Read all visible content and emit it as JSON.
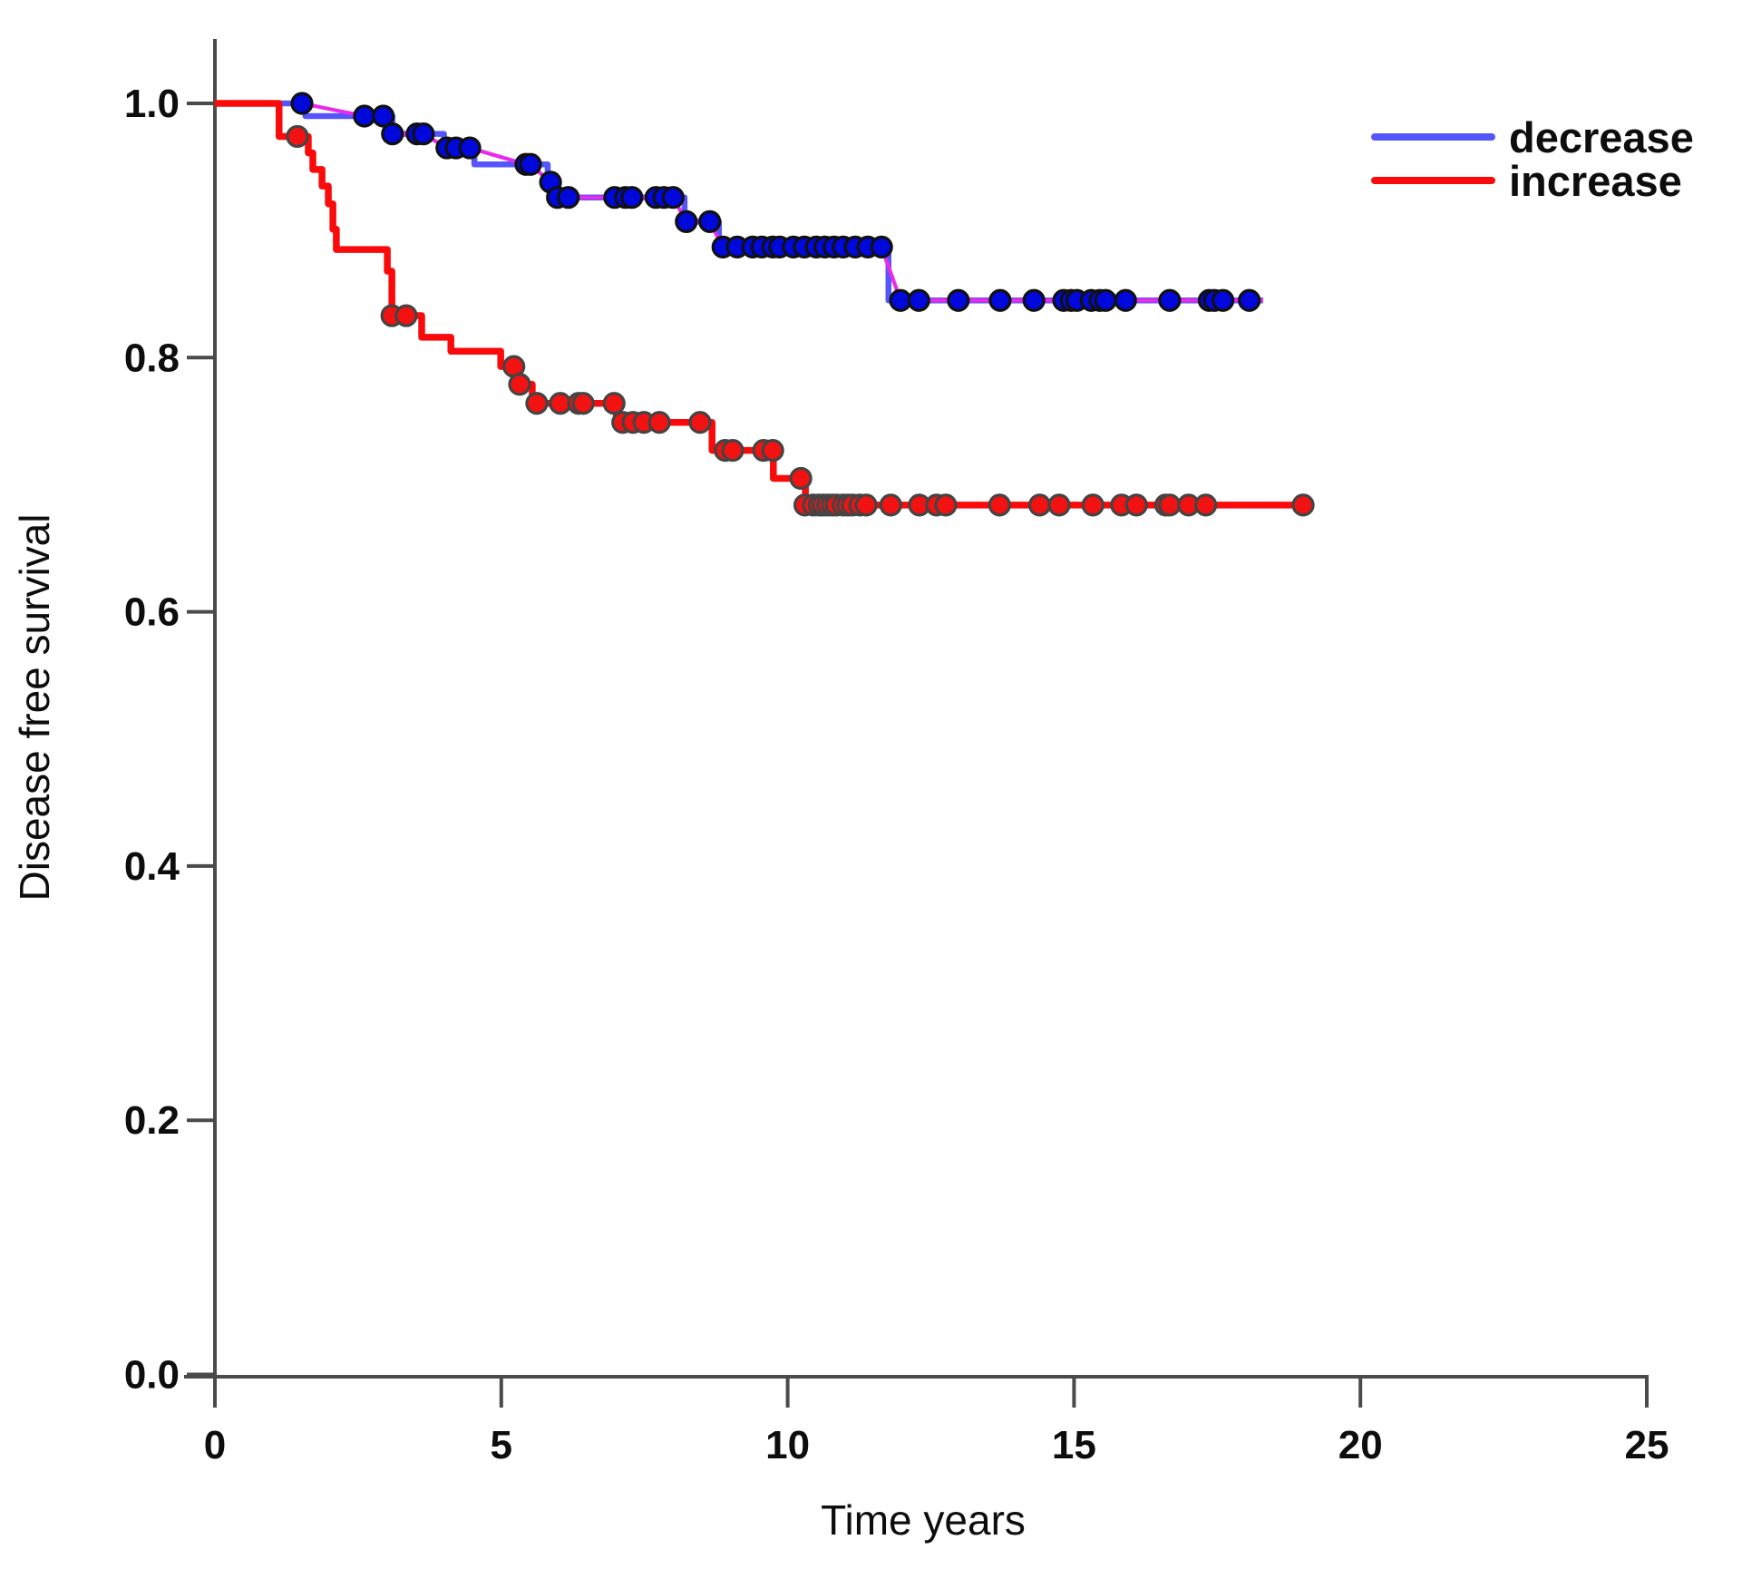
{
  "figure": {
    "background": "#ffffff",
    "axis_color": "#4a4a4a",
    "text_color": "#0d0d0d"
  },
  "axes": {
    "x": {
      "title": "Time years",
      "tick_labels": [
        "0",
        "5",
        "10",
        "15",
        "20",
        "25"
      ],
      "range": [
        0,
        25
      ]
    },
    "y": {
      "title": "Disease free survival",
      "tick_labels": [
        "0.0",
        "0.2",
        "0.4",
        "0.6",
        "0.8",
        "1.0"
      ],
      "range": [
        0,
        1
      ]
    }
  },
  "legend": [
    {
      "label": "decrease",
      "color": "#5456fb"
    },
    {
      "label": "increase",
      "color": "#fa0a0a"
    }
  ],
  "chart_data": {
    "type": "line",
    "subtype": "kaplan-meier-step",
    "title": "",
    "xlabel": "Time years",
    "ylabel": "Disease free survival",
    "xlim": [
      0,
      25
    ],
    "ylim": [
      0,
      1
    ],
    "grid": false,
    "legend_position": "top-right",
    "series": [
      {
        "name": "decrease",
        "color": "#5456fb",
        "connector_color": "#e92be9",
        "dot_fill": "#0008dc",
        "dot_stroke": "#101010",
        "steps": [
          [
            0,
            1.0
          ],
          [
            1.58,
            0.99
          ],
          [
            3.1,
            0.976
          ],
          [
            4.0,
            0.965
          ],
          [
            4.53,
            0.952
          ],
          [
            5.81,
            0.938
          ],
          [
            5.94,
            0.926
          ],
          [
            8.2,
            0.907
          ],
          [
            8.8,
            0.887
          ],
          [
            11.76,
            0.845
          ]
        ],
        "end_time": 18.3,
        "censored": [
          [
            1.52,
            1.0
          ],
          [
            2.61,
            0.99
          ],
          [
            2.94,
            0.99
          ],
          [
            3.1,
            0.976
          ],
          [
            3.53,
            0.976
          ],
          [
            3.64,
            0.976
          ],
          [
            4.05,
            0.965
          ],
          [
            4.21,
            0.965
          ],
          [
            4.45,
            0.965
          ],
          [
            5.43,
            0.952
          ],
          [
            5.51,
            0.952
          ],
          [
            5.86,
            0.938
          ],
          [
            5.98,
            0.926
          ],
          [
            6.17,
            0.926
          ],
          [
            6.98,
            0.926
          ],
          [
            7.17,
            0.926
          ],
          [
            7.28,
            0.926
          ],
          [
            7.7,
            0.926
          ],
          [
            7.84,
            0.926
          ],
          [
            8.0,
            0.926
          ],
          [
            8.23,
            0.907
          ],
          [
            8.64,
            0.907
          ],
          [
            8.87,
            0.887
          ],
          [
            9.12,
            0.887
          ],
          [
            9.39,
            0.887
          ],
          [
            9.55,
            0.887
          ],
          [
            9.74,
            0.887
          ],
          [
            9.86,
            0.887
          ],
          [
            10.1,
            0.887
          ],
          [
            10.29,
            0.887
          ],
          [
            10.5,
            0.887
          ],
          [
            10.65,
            0.887
          ],
          [
            10.81,
            0.887
          ],
          [
            10.97,
            0.887
          ],
          [
            11.18,
            0.887
          ],
          [
            11.4,
            0.887
          ],
          [
            11.64,
            0.887
          ],
          [
            11.97,
            0.845
          ],
          [
            12.29,
            0.845
          ],
          [
            12.98,
            0.845
          ],
          [
            13.71,
            0.845
          ],
          [
            14.3,
            0.845
          ],
          [
            14.82,
            0.845
          ],
          [
            14.95,
            0.845
          ],
          [
            15.05,
            0.845
          ],
          [
            15.3,
            0.845
          ],
          [
            15.45,
            0.845
          ],
          [
            15.55,
            0.845
          ],
          [
            15.9,
            0.845
          ],
          [
            16.67,
            0.845
          ],
          [
            17.36,
            0.845
          ],
          [
            17.45,
            0.845
          ],
          [
            17.6,
            0.845
          ],
          [
            18.06,
            0.845
          ]
        ]
      },
      {
        "name": "increase",
        "color": "#fa0a0a",
        "connector_color": null,
        "dot_fill": "#f21212",
        "dot_stroke": "#444444",
        "steps": [
          [
            0,
            1.0
          ],
          [
            1.12,
            0.974
          ],
          [
            1.63,
            0.961
          ],
          [
            1.71,
            0.948
          ],
          [
            1.87,
            0.935
          ],
          [
            1.98,
            0.921
          ],
          [
            2.06,
            0.901
          ],
          [
            2.12,
            0.885
          ],
          [
            3.01,
            0.868
          ],
          [
            3.09,
            0.833
          ],
          [
            3.61,
            0.816
          ],
          [
            4.12,
            0.805
          ],
          [
            4.99,
            0.793
          ],
          [
            5.32,
            0.779
          ],
          [
            5.54,
            0.764
          ],
          [
            7.01,
            0.749
          ],
          [
            8.68,
            0.727
          ],
          [
            9.75,
            0.705
          ],
          [
            10.31,
            0.684
          ]
        ],
        "end_time": 19.1,
        "censored": [
          [
            1.44,
            0.974
          ],
          [
            3.09,
            0.833
          ],
          [
            3.34,
            0.833
          ],
          [
            5.22,
            0.793
          ],
          [
            5.32,
            0.779
          ],
          [
            5.62,
            0.764
          ],
          [
            6.03,
            0.764
          ],
          [
            6.35,
            0.764
          ],
          [
            6.43,
            0.764
          ],
          [
            6.97,
            0.764
          ],
          [
            7.12,
            0.749
          ],
          [
            7.3,
            0.749
          ],
          [
            7.49,
            0.749
          ],
          [
            7.76,
            0.749
          ],
          [
            8.47,
            0.749
          ],
          [
            8.91,
            0.727
          ],
          [
            9.04,
            0.727
          ],
          [
            9.58,
            0.727
          ],
          [
            9.74,
            0.727
          ],
          [
            10.23,
            0.705
          ],
          [
            10.3,
            0.684
          ],
          [
            10.45,
            0.684
          ],
          [
            10.55,
            0.684
          ],
          [
            10.62,
            0.684
          ],
          [
            10.7,
            0.684
          ],
          [
            10.78,
            0.684
          ],
          [
            10.85,
            0.684
          ],
          [
            10.97,
            0.684
          ],
          [
            11.05,
            0.684
          ],
          [
            11.13,
            0.684
          ],
          [
            11.26,
            0.684
          ],
          [
            11.37,
            0.684
          ],
          [
            11.8,
            0.684
          ],
          [
            12.3,
            0.684
          ],
          [
            12.6,
            0.684
          ],
          [
            12.76,
            0.684
          ],
          [
            13.7,
            0.684
          ],
          [
            14.4,
            0.684
          ],
          [
            14.74,
            0.684
          ],
          [
            15.33,
            0.684
          ],
          [
            15.83,
            0.684
          ],
          [
            16.09,
            0.684
          ],
          [
            16.6,
            0.684
          ],
          [
            16.67,
            0.684
          ],
          [
            17.0,
            0.684
          ],
          [
            17.3,
            0.684
          ],
          [
            19.0,
            0.684
          ]
        ]
      }
    ]
  }
}
